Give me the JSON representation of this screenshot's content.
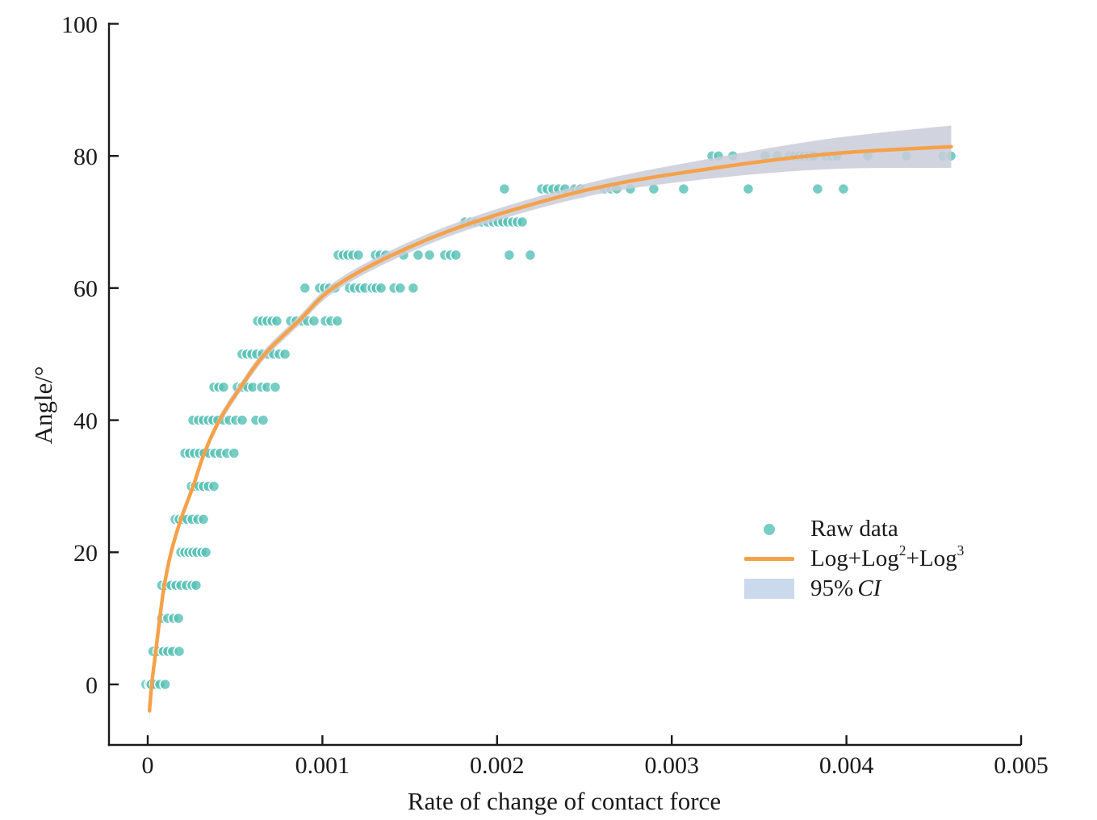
{
  "colors": {
    "scatter": "#55c0b5",
    "scatter_edge": "#ffffff",
    "fit_line": "#f5a149",
    "ci_band": "#c9cdd9",
    "ci_legend_swatch": "#cbd9ec",
    "axis": "#1a1a1a",
    "text": "#1a1a1a"
  },
  "legend": {
    "raw_label": "Raw data",
    "fit_p1": "Log+Log",
    "fit_s1": "2",
    "fit_p2": "+Log",
    "fit_s2": "3",
    "ci_pct": "95%",
    "ci_word": "CI"
  },
  "chart_data": {
    "type": "scatter",
    "title": "",
    "xlabel": "Rate of change of contact force",
    "ylabel": "Angle/°",
    "xlim": [
      -0.00022,
      0.005
    ],
    "ylim": [
      -9.2,
      100.2
    ],
    "grid": false,
    "legend_position": "inside lower-right",
    "x_ticks": {
      "values": [
        0,
        0.001,
        0.002,
        0.003,
        0.004,
        0.005
      ],
      "labels": [
        "0",
        "0.001",
        "0.002",
        "0.003",
        "0.004",
        "0.005"
      ]
    },
    "y_ticks": {
      "values": [
        0,
        20,
        40,
        60,
        80,
        100
      ],
      "labels": [
        "0",
        "20",
        "40",
        "60",
        "80",
        "100"
      ]
    },
    "raw_data": {
      "name": "Raw data",
      "rows": [
        {
          "angle": 0,
          "x": [
            -1e-05,
            1e-05,
            2e-05,
            4e-05,
            7e-05,
            0.0001
          ]
        },
        {
          "angle": 5,
          "x": [
            3e-05,
            6e-05,
            9e-05,
            0.000115,
            0.000143,
            0.00018
          ]
        },
        {
          "angle": 10,
          "x": [
            8e-05,
            0.000115,
            0.000148,
            0.000176
          ]
        },
        {
          "angle": 15,
          "x": [
            8e-05,
            0.000107,
            0.000134,
            0.000162,
            0.00019,
            0.000222,
            0.000254,
            0.000277
          ]
        },
        {
          "angle": 20,
          "x": [
            0.00019,
            0.000213,
            0.000236,
            0.000259,
            0.000282,
            0.00031,
            0.000333
          ]
        },
        {
          "angle": 25,
          "x": [
            0.000157,
            0.00018,
            0.000203,
            0.000226,
            0.000254,
            0.000287,
            0.000319
          ]
        },
        {
          "angle": 30,
          "x": [
            0.00025,
            0.000273,
            0.000296,
            0.000319,
            0.000347,
            0.000379
          ]
        },
        {
          "angle": 35,
          "x": [
            0.000213,
            0.00024,
            0.000268,
            0.000296,
            0.000323,
            0.000351,
            0.000384,
            0.000416,
            0.000453,
            0.000494
          ]
        },
        {
          "angle": 40,
          "x": [
            0.000259,
            0.000291,
            0.000319,
            0.000347,
            0.000374,
            0.000402,
            0.000434,
            0.000467,
            0.000504,
            0.000541,
            0.000619,
            0.000661
          ]
        },
        {
          "angle": 45,
          "x": [
            0.000379,
            0.000407,
            0.000434,
            0.000513,
            0.000541,
            0.000573,
            0.000601,
            0.000652,
            0.000684,
            0.00073
          ]
        },
        {
          "angle": 50,
          "x": [
            0.00054,
            0.000568,
            0.000596,
            0.000624,
            0.000656,
            0.000689,
            0.000721,
            0.000753,
            0.000786
          ]
        },
        {
          "angle": 55,
          "x": [
            0.000629,
            0.000656,
            0.000684,
            0.000712,
            0.000739,
            0.000818,
            0.00085,
            0.000883,
            0.000915,
            0.000952,
            0.001017,
            0.001049,
            0.001086
          ]
        },
        {
          "angle": 60,
          "x": [
            0.0009,
            0.000984,
            0.001012,
            0.00104,
            0.001072,
            0.001155,
            0.001183,
            0.001215,
            0.001243,
            0.001285,
            0.001308,
            0.001336,
            0.00141,
            0.001446,
            0.00152
          ]
        },
        {
          "angle": 65,
          "x": [
            0.00109,
            0.00112,
            0.001146,
            0.001174,
            0.001206,
            0.001303,
            0.001331,
            0.001363,
            0.001465,
            0.001548,
            0.001613,
            0.0017,
            0.001733,
            0.001765,
            0.00207,
            0.00219
          ]
        },
        {
          "angle": 70,
          "x": [
            0.001816,
            0.001848,
            0.001881,
            0.001913,
            0.001945,
            0.001978,
            0.002006,
            0.002033,
            0.002061,
            0.002089,
            0.002116,
            0.002144
          ]
        },
        {
          "angle": 75,
          "x": [
            0.002042,
            0.002255,
            0.002287,
            0.00232,
            0.002352,
            0.002389,
            0.002444,
            0.002477,
            0.002615,
            0.002652,
            0.002685,
            0.002763,
            0.002897,
            0.003068,
            0.003438,
            0.003835,
            0.003983
          ]
        },
        {
          "angle": 80,
          "x": [
            0.00323,
            0.003267,
            0.00335,
            0.003535,
            0.003604,
            0.003674,
            0.003701,
            0.003729,
            0.003757,
            0.003785,
            0.003812,
            0.003882,
            0.003914,
            0.003946,
            0.004122,
            0.004344,
            0.004552,
            0.004598
          ]
        }
      ]
    },
    "fit": {
      "name": "Log+Log^2+Log^3",
      "x": [
        1e-05,
        2.3e-05,
        4.6e-05,
        6.9e-05,
        9.5e-05,
        0.000134,
        0.00019,
        0.00026,
        0.000324,
        0.000411,
        0.000532,
        0.00067,
        0.000864,
        0.00106,
        0.0014,
        0.00187,
        0.00254,
        0.0032,
        0.0039,
        0.0046
      ],
      "y": [
        -4,
        0,
        5,
        10,
        15,
        20,
        25,
        30,
        35,
        40,
        45,
        50,
        55,
        60,
        65,
        70,
        75,
        78,
        80.3,
        81.4
      ]
    },
    "ci": {
      "name": "95% CI",
      "halfwidth": [
        1.3,
        1.0,
        0.85,
        0.8,
        0.75,
        0.7,
        0.7,
        0.7,
        0.7,
        0.7,
        0.7,
        0.7,
        0.7,
        0.75,
        0.8,
        0.85,
        1.0,
        1.5,
        2.3,
        3.2
      ]
    }
  }
}
